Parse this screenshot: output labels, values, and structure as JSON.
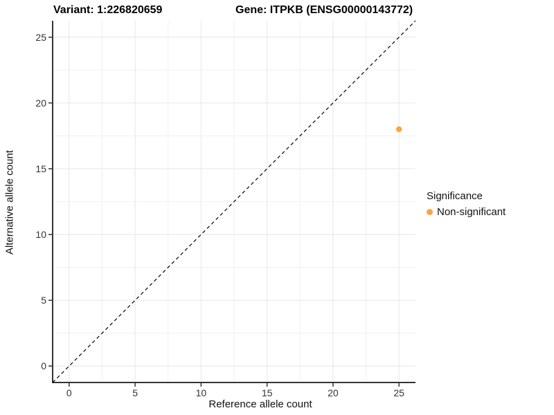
{
  "titles": {
    "variant": "Variant: 1:226820659",
    "gene": "Gene: ITPKB (ENSG00000143772)"
  },
  "chart_data": {
    "type": "scatter",
    "xlabel": "Reference allele count",
    "ylabel": "Alternative allele count",
    "xlim": [
      -1.25,
      26.25
    ],
    "ylim": [
      -1.25,
      26.25
    ],
    "x_ticks": [
      0,
      5,
      10,
      15,
      20,
      25
    ],
    "y_ticks": [
      0,
      5,
      10,
      15,
      20,
      25
    ],
    "x_minor_ticks": [
      2.5,
      7.5,
      12.5,
      17.5,
      22.5
    ],
    "y_minor_ticks": [
      2.5,
      7.5,
      12.5,
      17.5,
      22.5
    ],
    "grid": true,
    "points": [
      {
        "x": 25,
        "y": 18,
        "series": "Non-significant"
      }
    ],
    "reference_line": {
      "type": "identity",
      "style": "dashed"
    },
    "legend": {
      "title": "Significance",
      "position": "right",
      "entries": [
        {
          "label": "Non-significant",
          "color": "#FFA33C"
        }
      ]
    },
    "colors": {
      "point": "#FFA33C",
      "grid_major": "#E6E6E6",
      "grid_minor": "#F1F1F1",
      "axis_line": "#333333",
      "tick_label": "#333333",
      "reference_line": "#000000"
    }
  }
}
